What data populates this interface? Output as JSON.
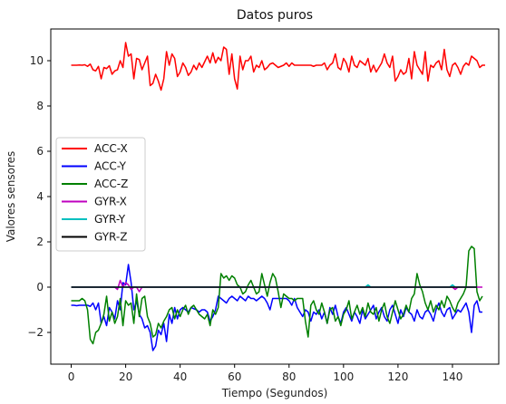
{
  "chart_data": {
    "type": "line",
    "title": "Datos puros",
    "xlabel": "Tiempo (Segundos)",
    "ylabel": "Valores sensores",
    "xlim": [
      -7.5,
      157
    ],
    "ylim": [
      -3.4,
      11.4
    ],
    "xticks": [
      0,
      20,
      40,
      60,
      80,
      100,
      120,
      140
    ],
    "yticks": [
      -2,
      0,
      2,
      4,
      6,
      8,
      10
    ],
    "grid": false,
    "legend_position": "center-left",
    "series": [
      {
        "name": "ACC-X",
        "color": "#ff0000",
        "values": [
          9.8,
          9.8,
          9.8,
          9.81,
          9.8,
          9.82,
          9.75,
          9.85,
          9.6,
          9.55,
          9.75,
          9.2,
          9.7,
          9.65,
          9.78,
          9.4,
          9.55,
          9.6,
          10.0,
          9.7,
          10.8,
          10.2,
          10.3,
          9.2,
          10.1,
          10.05,
          9.6,
          9.9,
          10.2,
          8.9,
          9.0,
          9.4,
          9.1,
          8.7,
          9.2,
          10.4,
          9.8,
          10.3,
          10.1,
          9.3,
          9.5,
          9.9,
          9.7,
          9.35,
          9.5,
          9.8,
          9.6,
          9.9,
          9.7,
          9.95,
          10.2,
          9.9,
          10.35,
          9.9,
          10.15,
          10.0,
          10.6,
          10.5,
          9.4,
          10.3,
          9.2,
          8.75,
          10.2,
          9.6,
          10.0,
          10.0,
          10.2,
          9.5,
          9.8,
          9.7,
          10.0,
          9.6,
          9.7,
          9.85,
          9.9,
          9.8,
          9.7,
          9.75,
          9.8,
          9.9,
          9.75,
          9.9,
          9.8,
          9.8,
          9.8,
          9.8,
          9.8,
          9.8,
          9.8,
          9.75,
          9.8,
          9.8,
          9.8,
          9.9,
          9.6,
          9.8,
          9.9,
          10.3,
          9.7,
          9.6,
          10.1,
          9.9,
          9.5,
          10.2,
          9.8,
          9.7,
          10.0,
          9.9,
          9.8,
          10.1,
          9.5,
          9.8,
          9.5,
          9.7,
          9.9,
          10.3,
          9.9,
          9.7,
          10.2,
          9.1,
          9.3,
          9.6,
          9.4,
          9.5,
          10.1,
          9.2,
          10.4,
          9.8,
          9.6,
          9.4,
          10.4,
          9.1,
          9.8,
          9.7,
          9.9,
          10.0,
          9.6,
          10.5,
          9.6,
          9.3,
          9.8,
          9.9,
          9.7,
          9.4,
          9.75,
          9.9,
          9.8,
          10.2,
          10.1,
          10.0,
          9.7,
          9.8,
          9.8
        ]
      },
      {
        "name": "ACC-Y",
        "color": "#0000ff",
        "values": [
          -0.8,
          -0.8,
          -0.82,
          -0.8,
          -0.8,
          -0.8,
          -0.8,
          -0.85,
          -0.7,
          -1.0,
          -0.7,
          -1.6,
          -1.3,
          -1.7,
          -0.9,
          -1.1,
          -1.4,
          -0.6,
          -1.0,
          0.2,
          0.1,
          1.0,
          0.2,
          -1.0,
          -0.6,
          -1.2,
          -1.4,
          -1.8,
          -1.7,
          -2.0,
          -2.8,
          -2.6,
          -1.9,
          -2.1,
          -1.6,
          -2.4,
          -1.2,
          -1.6,
          -0.9,
          -1.4,
          -1.0,
          -0.9,
          -1.0,
          -1.1,
          -0.9,
          -0.95,
          -1.0,
          -1.1,
          -1.0,
          -1.0,
          -1.1,
          -1.5,
          -1.3,
          -1.0,
          -0.4,
          -0.5,
          -0.6,
          -0.7,
          -0.5,
          -0.4,
          -0.5,
          -0.6,
          -0.4,
          -0.5,
          -0.6,
          -0.4,
          -0.5,
          -0.5,
          -0.6,
          -0.5,
          -0.4,
          -0.5,
          -0.7,
          -1.0,
          -0.5,
          -0.5,
          -0.5,
          -0.5,
          -0.5,
          -0.5,
          -0.6,
          -0.8,
          -0.5,
          -0.9,
          -1.1,
          -1.3,
          -1.0,
          -1.1,
          -1.5,
          -1.1,
          -1.2,
          -1.0,
          -1.4,
          -1.1,
          -1.6,
          -0.9,
          -1.2,
          -0.8,
          -1.3,
          -1.6,
          -1.1,
          -0.9,
          -1.2,
          -1.5,
          -1.1,
          -1.3,
          -1.6,
          -1.0,
          -1.4,
          -1.2,
          -1.0,
          -0.8,
          -1.4,
          -1.1,
          -0.9,
          -1.3,
          -1.5,
          -1.0,
          -0.8,
          -1.2,
          -1.6,
          -1.0,
          -1.3,
          -0.9,
          -1.1,
          -1.2,
          -1.5,
          -1.0,
          -1.3,
          -1.4,
          -1.1,
          -1.0,
          -1.2,
          -1.5,
          -1.0,
          -0.7,
          -1.1,
          -1.3,
          -1.0,
          -0.9,
          -1.4,
          -1.2,
          -1.0,
          -1.1,
          -0.9,
          -0.7,
          -1.1,
          -2.0,
          -0.8,
          -0.6,
          -1.1,
          -1.1
        ]
      },
      {
        "name": "ACC-Z",
        "color": "#008000",
        "values": [
          -0.6,
          -0.6,
          -0.6,
          -0.6,
          -0.5,
          -0.6,
          -1.0,
          -2.3,
          -2.5,
          -2.0,
          -1.9,
          -1.6,
          -1.2,
          -0.4,
          -1.5,
          -1.1,
          -1.6,
          -1.3,
          -0.5,
          -1.7,
          -0.6,
          -0.8,
          -0.7,
          -1.6,
          -0.3,
          -1.3,
          -0.5,
          -0.4,
          -1.3,
          -1.6,
          -2.2,
          -2.1,
          -1.6,
          -1.8,
          -1.5,
          -1.3,
          -1.0,
          -0.9,
          -1.4,
          -1.0,
          -1.3,
          -1.0,
          -0.8,
          -1.2,
          -0.9,
          -0.8,
          -1.0,
          -1.2,
          -1.3,
          -1.4,
          -1.2,
          -1.7,
          -1.0,
          -1.2,
          -0.9,
          0.6,
          0.4,
          0.5,
          0.3,
          0.5,
          0.4,
          0.1,
          0.0,
          -0.3,
          -0.2,
          0.1,
          0.3,
          0.0,
          -0.3,
          -0.2,
          0.6,
          0.1,
          -0.4,
          0.2,
          0.6,
          0.4,
          -0.2,
          -0.9,
          -0.3,
          -0.4,
          -0.5,
          -0.5,
          -0.6,
          -0.5,
          -0.5,
          -0.5,
          -1.5,
          -2.2,
          -0.8,
          -0.6,
          -1.0,
          -1.2,
          -0.7,
          -1.1,
          -1.6,
          -1.0,
          -0.9,
          -1.5,
          -1.3,
          -1.7,
          -1.2,
          -1.0,
          -0.6,
          -1.4,
          -1.1,
          -0.8,
          -1.2,
          -0.9,
          -1.3,
          -0.7,
          -1.1,
          -1.2,
          -0.9,
          -1.5,
          -1.0,
          -0.7,
          -1.3,
          -1.6,
          -1.1,
          -0.6,
          -1.0,
          -1.4,
          -1.2,
          -0.8,
          -1.1,
          -0.5,
          -0.3,
          0.6,
          0.1,
          -0.2,
          -0.7,
          -1.0,
          -0.6,
          -1.1,
          -0.8,
          -1.0,
          -0.6,
          -0.9,
          -0.4,
          -0.6,
          -0.9,
          -1.1,
          -0.7,
          -0.5,
          -0.3,
          0.0,
          1.6,
          1.8,
          1.7,
          -0.2,
          -0.6,
          -0.4
        ]
      },
      {
        "name": "GYR-X",
        "color": "#bf00bf",
        "values": [
          0,
          0,
          0,
          0,
          0,
          0,
          0,
          0,
          0,
          0,
          0,
          0,
          0,
          0,
          0,
          0,
          0,
          -0.1,
          0.3,
          0.0,
          0.2,
          0.1,
          -0.1,
          0.0,
          0.0,
          -0.2,
          0.0,
          0,
          0,
          0,
          0,
          0,
          0,
          0,
          0,
          0,
          0,
          0,
          0,
          0,
          0,
          0,
          0,
          0,
          0,
          0,
          0,
          0,
          0,
          0,
          0,
          0,
          0,
          0,
          0,
          0,
          0,
          0,
          0,
          0,
          0,
          0,
          0,
          0,
          0,
          0,
          0,
          0,
          0,
          0,
          0,
          0,
          0,
          0,
          0,
          0,
          0,
          0,
          0,
          0,
          0,
          0,
          0,
          0,
          0,
          0,
          0,
          0,
          0,
          0,
          0,
          0,
          0,
          0,
          0,
          0,
          0,
          0,
          0,
          0,
          0,
          0,
          0,
          0,
          0,
          0,
          0,
          0,
          0,
          0,
          0,
          0,
          0,
          0,
          0,
          0,
          0,
          0,
          0,
          0,
          0,
          0,
          0,
          0,
          0,
          0,
          0,
          0,
          0,
          0,
          0,
          0,
          0,
          0,
          0,
          0,
          0,
          0,
          0,
          0,
          0,
          -0.1,
          0,
          0,
          0,
          0,
          0,
          0,
          0,
          0,
          0,
          0
        ]
      },
      {
        "name": "GYR-Y",
        "color": "#00bfbf",
        "values": [
          0,
          0,
          0,
          0,
          0,
          0,
          0,
          0,
          0,
          0,
          0,
          0,
          0,
          0,
          0,
          0,
          0,
          0,
          0,
          0,
          0,
          0,
          0,
          0,
          0,
          0,
          0,
          0,
          0,
          0,
          0,
          0,
          0,
          0,
          0,
          0,
          0,
          0,
          0,
          0,
          0,
          0,
          0,
          0,
          0,
          0,
          0,
          0,
          0,
          0,
          0,
          0,
          0,
          0,
          0,
          0,
          0,
          0,
          0,
          0,
          0,
          0,
          0,
          0,
          0,
          0,
          0,
          0,
          0,
          0,
          0,
          0,
          0,
          0,
          0,
          0,
          0,
          0,
          0,
          0,
          0,
          0,
          0,
          0,
          0,
          0,
          0,
          0,
          0,
          0,
          0,
          0,
          0,
          0,
          0,
          0,
          0,
          0,
          0,
          0,
          0,
          0,
          0,
          0,
          0,
          0,
          0,
          0,
          0,
          0.1,
          0,
          0,
          0,
          0,
          0,
          0,
          0,
          0,
          0,
          0,
          0,
          0,
          0,
          0,
          0,
          0,
          0,
          0,
          0,
          0,
          0,
          0,
          0,
          0,
          0,
          0,
          0,
          0,
          0,
          0,
          0.1,
          0,
          0,
          0,
          0,
          0,
          0,
          0,
          0,
          0
        ]
      },
      {
        "name": "GYR-Z",
        "color": "#000000",
        "values": [
          0,
          0,
          0,
          0,
          0,
          0,
          0,
          0,
          0,
          0,
          0,
          0,
          0,
          0,
          0,
          0,
          0,
          0,
          0,
          0,
          0,
          0,
          0,
          0,
          0,
          0,
          0,
          0,
          0,
          0,
          0,
          0,
          0,
          0,
          0,
          0,
          0,
          0,
          0,
          0,
          0,
          0,
          0,
          0,
          0,
          0,
          0,
          0,
          0,
          0,
          0,
          0,
          0,
          0,
          0,
          0,
          0,
          0,
          0,
          0,
          0,
          0,
          0,
          0,
          0,
          0,
          0,
          0,
          0,
          0,
          0,
          0,
          0,
          0,
          0,
          0,
          0,
          0,
          0,
          0,
          0,
          0,
          0,
          0,
          0,
          0,
          0,
          0,
          0,
          0,
          0,
          0,
          0,
          0,
          0,
          0,
          0,
          0,
          0,
          0,
          0,
          0,
          0,
          0,
          0,
          0,
          0,
          0,
          0,
          0,
          0,
          0,
          0,
          0,
          0,
          0,
          0,
          0,
          0,
          0,
          0,
          0,
          0,
          0,
          0,
          0,
          0,
          0,
          0,
          0,
          0,
          0,
          0,
          0,
          0,
          0,
          0,
          0,
          0,
          0,
          0,
          0,
          0,
          0,
          0,
          0,
          0,
          0,
          0,
          0
        ]
      }
    ]
  }
}
